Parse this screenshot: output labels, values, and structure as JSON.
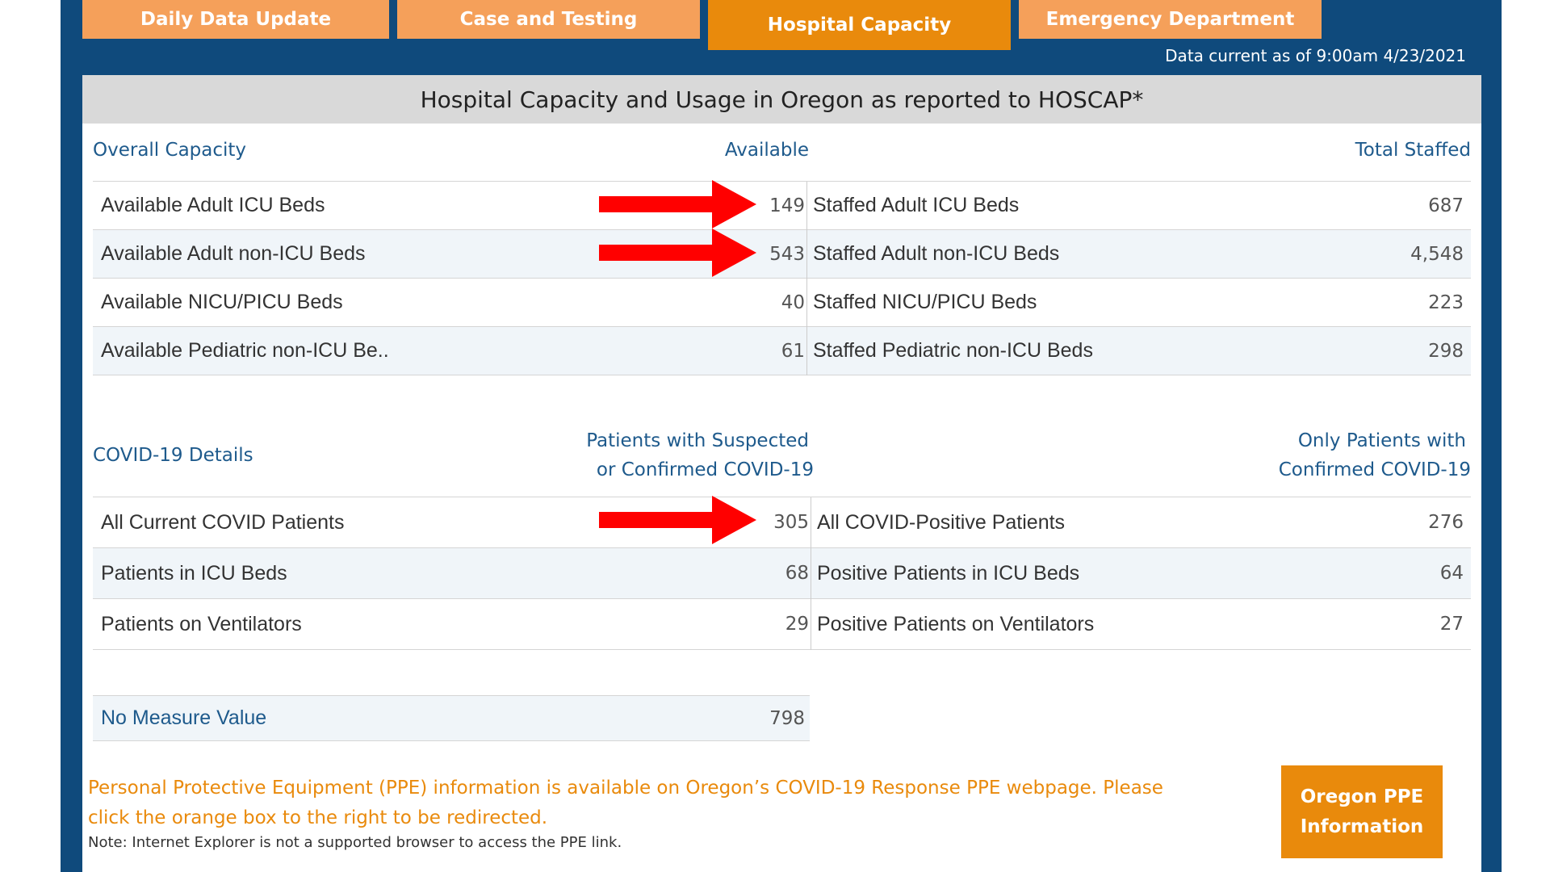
{
  "tabs": [
    {
      "label": "Daily Data Update",
      "active": false
    },
    {
      "label": "Case and Testing",
      "active": false
    },
    {
      "label": "Hospital Capacity",
      "active": true
    },
    {
      "label": "Emergency Department",
      "active": false
    }
  ],
  "data_current": "Data current as of 9:00am 4/23/2021",
  "title": "Hospital Capacity and Usage in Oregon as reported to HOSCAP*",
  "overall": {
    "section_label": "Overall Capacity",
    "available_header": "Available",
    "staffed_header": "Total Staffed",
    "rows": [
      {
        "available_label": "Available Adult ICU Beds",
        "available_value": "149",
        "staffed_label": "Staffed Adult ICU Beds",
        "staffed_value": "687"
      },
      {
        "available_label": "Available Adult non-ICU Beds",
        "available_value": "543",
        "staffed_label": "Staffed Adult non-ICU Beds",
        "staffed_value": "4,548"
      },
      {
        "available_label": "Available NICU/PICU Beds",
        "available_value": "40",
        "staffed_label": "Staffed NICU/PICU Beds",
        "staffed_value": "223"
      },
      {
        "available_label": "Available Pediatric non-ICU Be..",
        "available_value": "61",
        "staffed_label": "Staffed Pediatric non-ICU Beds",
        "staffed_value": "298"
      }
    ]
  },
  "covid": {
    "section_label": "COVID-19 Details",
    "suspected_header_line1": "Patients with Suspected",
    "suspected_header_line2": "or Confirmed COVID-19",
    "confirmed_header_line1": "Only Patients with",
    "confirmed_header_line2": "Confirmed COVID-19",
    "rows": [
      {
        "suspected_label": "All Current COVID Patients",
        "suspected_value": "305",
        "confirmed_label": "All COVID-Positive Patients",
        "confirmed_value": "276"
      },
      {
        "suspected_label": "Patients in ICU Beds",
        "suspected_value": "68",
        "confirmed_label": "Positive Patients in ICU Beds",
        "confirmed_value": "64"
      },
      {
        "suspected_label": "Patients on Ventilators",
        "suspected_value": "29",
        "confirmed_label": "Positive Patients on Ventilators",
        "confirmed_value": "27"
      }
    ]
  },
  "no_measure": {
    "label": "No Measure Value",
    "value": "798"
  },
  "ppe": {
    "text_line1": "Personal Protective Equipment (PPE) information is available on Oregon’s COVID-19 Response PPE webpage. Please",
    "text_line2": "click the orange box to the right to be redirected.",
    "note": "Note: Internet Explorer is not a supported browser to access the PPE link.",
    "button_line1": "Oregon PPE",
    "button_line2": "Information"
  },
  "colors": {
    "frame": "#0f4a7c",
    "tab": "#f5a05a",
    "tab_active": "#e98a0c",
    "label_blue": "#1e5a8c",
    "arrow_red": "#ff0000"
  }
}
